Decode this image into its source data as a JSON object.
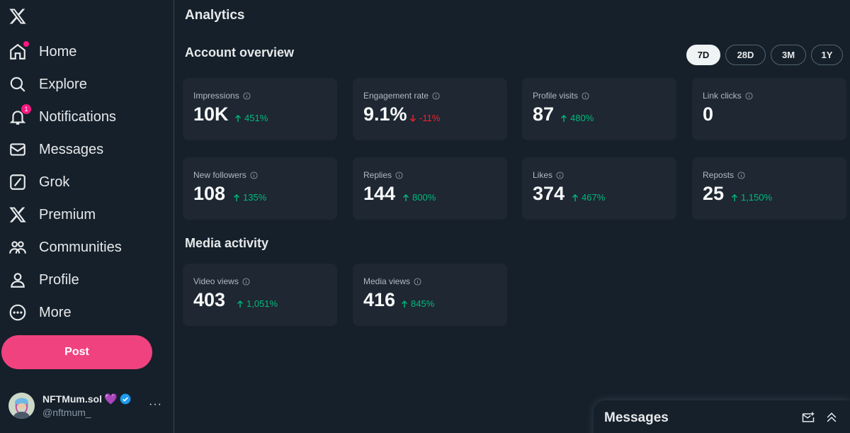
{
  "sidebar": {
    "items": [
      {
        "label": "Home",
        "icon": "home-icon"
      },
      {
        "label": "Explore",
        "icon": "search-icon"
      },
      {
        "label": "Notifications",
        "icon": "bell-icon",
        "badge": "1"
      },
      {
        "label": "Messages",
        "icon": "mail-icon"
      },
      {
        "label": "Grok",
        "icon": "grok-icon"
      },
      {
        "label": "Premium",
        "icon": "x-logo-icon"
      },
      {
        "label": "Communities",
        "icon": "communities-icon"
      },
      {
        "label": "Profile",
        "icon": "person-icon"
      },
      {
        "label": "More",
        "icon": "more-circle-icon"
      }
    ],
    "post_label": "Post",
    "account": {
      "name": "NFTMum.sol",
      "name_emoji": "💜",
      "handle": "@nftmum_",
      "more": "···"
    }
  },
  "main": {
    "title": "Analytics",
    "account_overview": "Account overview",
    "media_activity": "Media activity",
    "ranges": [
      "7D",
      "28D",
      "3M",
      "1Y"
    ],
    "selected_range": "7D",
    "overview_cards": [
      {
        "label": "Impressions",
        "value": "10K",
        "delta": "451%",
        "trend": "up"
      },
      {
        "label": "Engagement rate",
        "value": "9.1%",
        "delta": "-11%",
        "trend": "down"
      },
      {
        "label": "Profile visits",
        "value": "87",
        "delta": "480%",
        "trend": "up"
      },
      {
        "label": "Link clicks",
        "value": "0",
        "delta": "",
        "trend": "none"
      },
      {
        "label": "New followers",
        "value": "108",
        "delta": "135%",
        "trend": "up"
      },
      {
        "label": "Replies",
        "value": "144",
        "delta": "800%",
        "trend": "up"
      },
      {
        "label": "Likes",
        "value": "374",
        "delta": "467%",
        "trend": "up"
      },
      {
        "label": "Reposts",
        "value": "25",
        "delta": "1,150%",
        "trend": "up"
      }
    ],
    "media_cards": [
      {
        "label": "Video views",
        "value": "403",
        "delta": "1,051%",
        "trend": "up"
      },
      {
        "label": "Media views",
        "value": "416",
        "delta": "845%",
        "trend": "up"
      }
    ]
  },
  "messages_drawer": {
    "title": "Messages"
  },
  "colors": {
    "background": "#15202b",
    "card": "#1e2732",
    "post_button": "#f0427f",
    "positive": "#00ba7c",
    "negative": "#f4212e",
    "verified": "#1d9bf0"
  }
}
